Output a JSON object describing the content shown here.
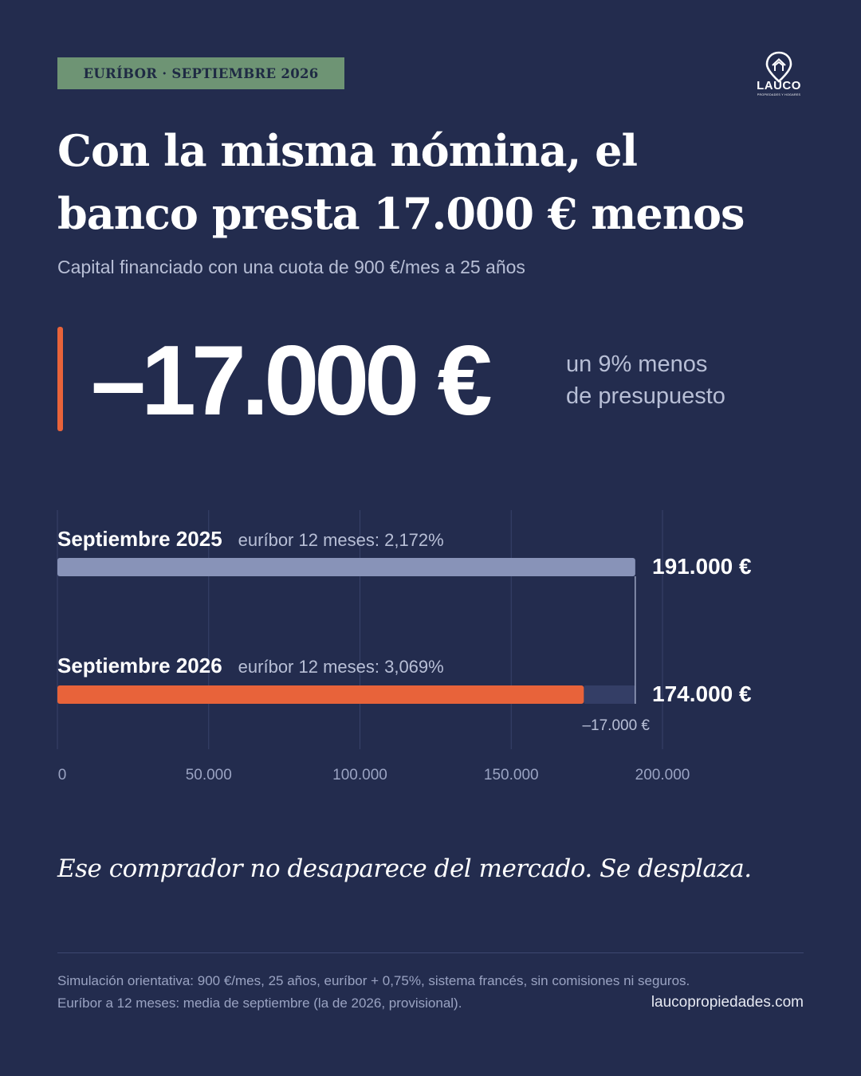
{
  "tag": "EURÍBOR · SEPTIEMBRE 2026",
  "logo": {
    "text": "LAUCO",
    "tagline": "PROPIEDADES Y HOGARES",
    "icon": "house-pin-icon"
  },
  "headline": {
    "line1": "Con la misma nómina, el",
    "line2": "banco presta 17.000 € menos"
  },
  "subtitle": "Capital financiado con una cuota de 900 €/mes a 25 años",
  "highlight": {
    "value": "–17.000 €",
    "note_line1": "un 9% menos",
    "note_line2": "de presupuesto"
  },
  "chart_data": {
    "type": "bar",
    "orientation": "horizontal",
    "categories": [
      "Septiembre 2025",
      "Septiembre 2026"
    ],
    "annotations": [
      "euríbor 12 meses: 2,172%",
      "euríbor 12 meses: 3,069%"
    ],
    "values": [
      191000,
      174000
    ],
    "value_labels": [
      "191.000 €",
      "174.000 €"
    ],
    "difference": {
      "value": -17000,
      "label": "–17.000 €"
    },
    "xlim": [
      0,
      200000
    ],
    "xticks": [
      0,
      50000,
      100000,
      150000,
      200000
    ],
    "xtick_labels": [
      "0",
      "50.000",
      "100.000",
      "150.000",
      "200.000"
    ],
    "grid": true,
    "colors": {
      "bar_2025": "#8893b8",
      "bar_2026": "#e8633a",
      "gap": "#343e66",
      "grid": "#38426a"
    }
  },
  "quote": "Ese comprador no desaparece del mercado. Se desplaza.",
  "footer": {
    "note1": "Simulación orientativa: 900 €/mes, 25 años, euríbor + 0,75%, sistema francés, sin comisiones ni seguros.",
    "note2": "Euríbor a 12 meses: media de septiembre (la de 2026, provisional).",
    "site": "laucopropiedades.com"
  }
}
